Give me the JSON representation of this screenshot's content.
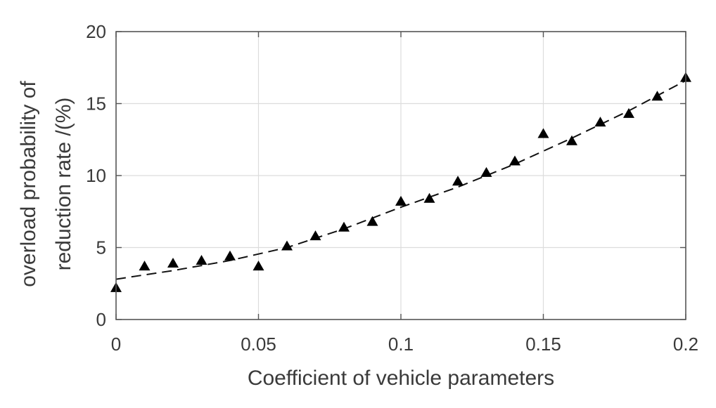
{
  "chart_data": {
    "type": "scatter",
    "title": "",
    "xlabel": "Coefficient of vehicle parameters",
    "ylabel_lines": [
      "overload probability of",
      "reduction rate /(%)"
    ],
    "xlim": [
      0,
      0.2
    ],
    "ylim": [
      0,
      20
    ],
    "xticks": [
      0,
      0.05,
      0.1,
      0.15,
      0.2
    ],
    "xtick_labels": [
      "0",
      "0.05",
      "0.1",
      "0.15",
      "0.2"
    ],
    "yticks": [
      0,
      5,
      10,
      15,
      20
    ],
    "ytick_labels": [
      "0",
      "5",
      "10",
      "15",
      "20"
    ],
    "grid": true,
    "series": [
      {
        "marker": "triangle",
        "color": "#000000",
        "x": [
          0,
          0.01,
          0.02,
          0.03,
          0.04,
          0.05,
          0.06,
          0.07,
          0.08,
          0.09,
          0.1,
          0.11,
          0.12,
          0.13,
          0.14,
          0.15,
          0.16,
          0.17,
          0.18,
          0.19,
          0.2
        ],
        "y": [
          2.2,
          3.7,
          3.9,
          4.1,
          4.4,
          3.7,
          5.1,
          5.8,
          6.4,
          6.8,
          8.2,
          8.4,
          9.6,
          10.2,
          11.0,
          12.9,
          12.4,
          13.7,
          14.3,
          15.5,
          16.8
        ]
      },
      {
        "line": "dashed",
        "color": "#111111",
        "x": [
          0,
          0.02,
          0.04,
          0.06,
          0.08,
          0.1,
          0.12,
          0.14,
          0.16,
          0.18,
          0.2
        ],
        "y": [
          2.8,
          3.4,
          4.1,
          5.0,
          6.3,
          7.8,
          9.2,
          10.8,
          12.6,
          14.5,
          16.6
        ]
      }
    ]
  }
}
